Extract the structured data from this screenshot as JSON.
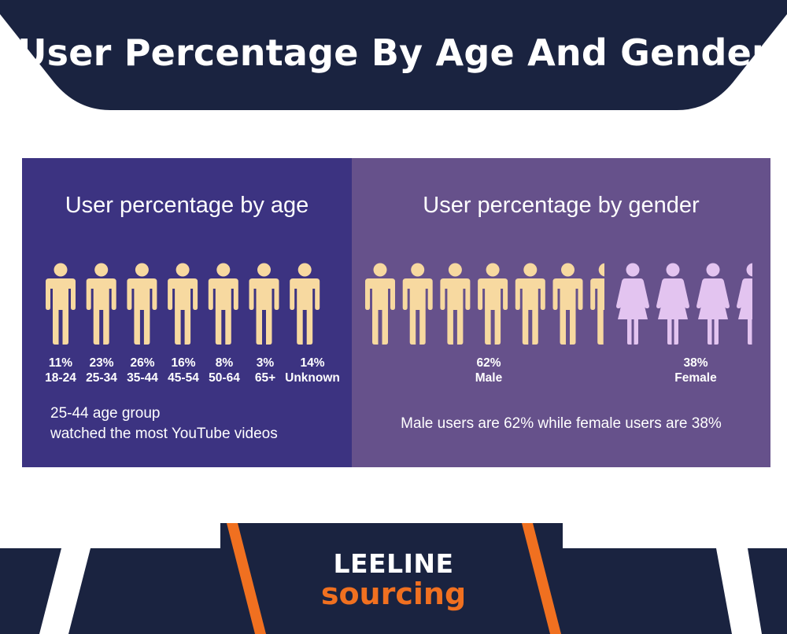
{
  "title": "User Percentage By Age And Gender",
  "colors": {
    "navy": "#1a2340",
    "age_panel": "#3c3381",
    "gender_panel": "#66518b",
    "male_figure": "#f7d9a0",
    "female_figure": "#e3c4f0",
    "accent_orange": "#f07020"
  },
  "age": {
    "heading": "User percentage by age",
    "groups": [
      {
        "percent": "11%",
        "range": "18-24"
      },
      {
        "percent": "23%",
        "range": "25-34"
      },
      {
        "percent": "26%",
        "range": "35-44"
      },
      {
        "percent": "16%",
        "range": "45-54"
      },
      {
        "percent": "8%",
        "range": "50-64"
      },
      {
        "percent": "3%",
        "range": "65+"
      },
      {
        "percent": "14%",
        "range": "Unknown"
      }
    ],
    "note_line1": "25-44 age group",
    "note_line2": "watched the most YouTube videos"
  },
  "gender": {
    "heading": "User percentage by gender",
    "male": {
      "percent": "62%",
      "label": "Male"
    },
    "female": {
      "percent": "38%",
      "label": "Female"
    },
    "note": "Male users are 62% while female users are 38%"
  },
  "logo": {
    "line1": "LEELINE",
    "line2": "sourcing"
  }
}
